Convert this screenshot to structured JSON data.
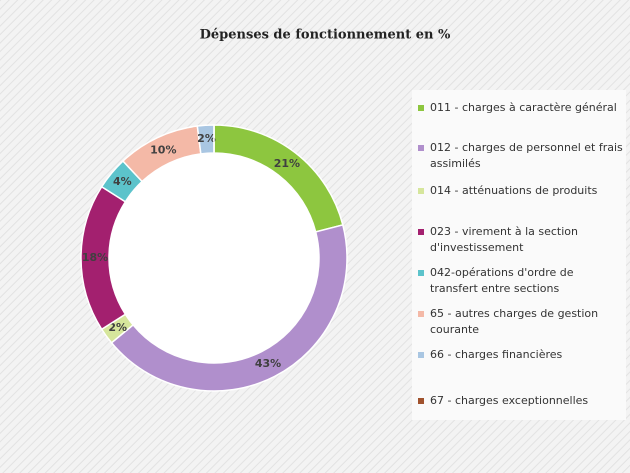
{
  "chart_data": {
    "type": "donut",
    "title": "Dépenses de fonctionnement en %",
    "categories": [
      "011 - charges à caractère général",
      "012 - charges de personnel et frais assimilés",
      "014 - atténuations de produits",
      "023 - virement à la section d'investissement",
      "042-opérations d'ordre de transfert entre sections",
      "65 - autres charges de gestion courante",
      "66 - charges financières",
      "67 - charges exceptionnelles"
    ],
    "values": [
      21,
      43,
      2,
      18,
      4,
      10,
      2,
      0
    ],
    "value_labels": [
      "21%",
      "43%",
      "2%",
      "18%",
      "4%",
      "10%",
      "2%",
      null
    ],
    "colors": [
      "#8dc63f",
      "#b08fcc",
      "#d6e69c",
      "#a3206f",
      "#5cc3cb",
      "#f4b9a7",
      "#a9c6e2",
      "#a0522d"
    ],
    "legend": "right"
  }
}
